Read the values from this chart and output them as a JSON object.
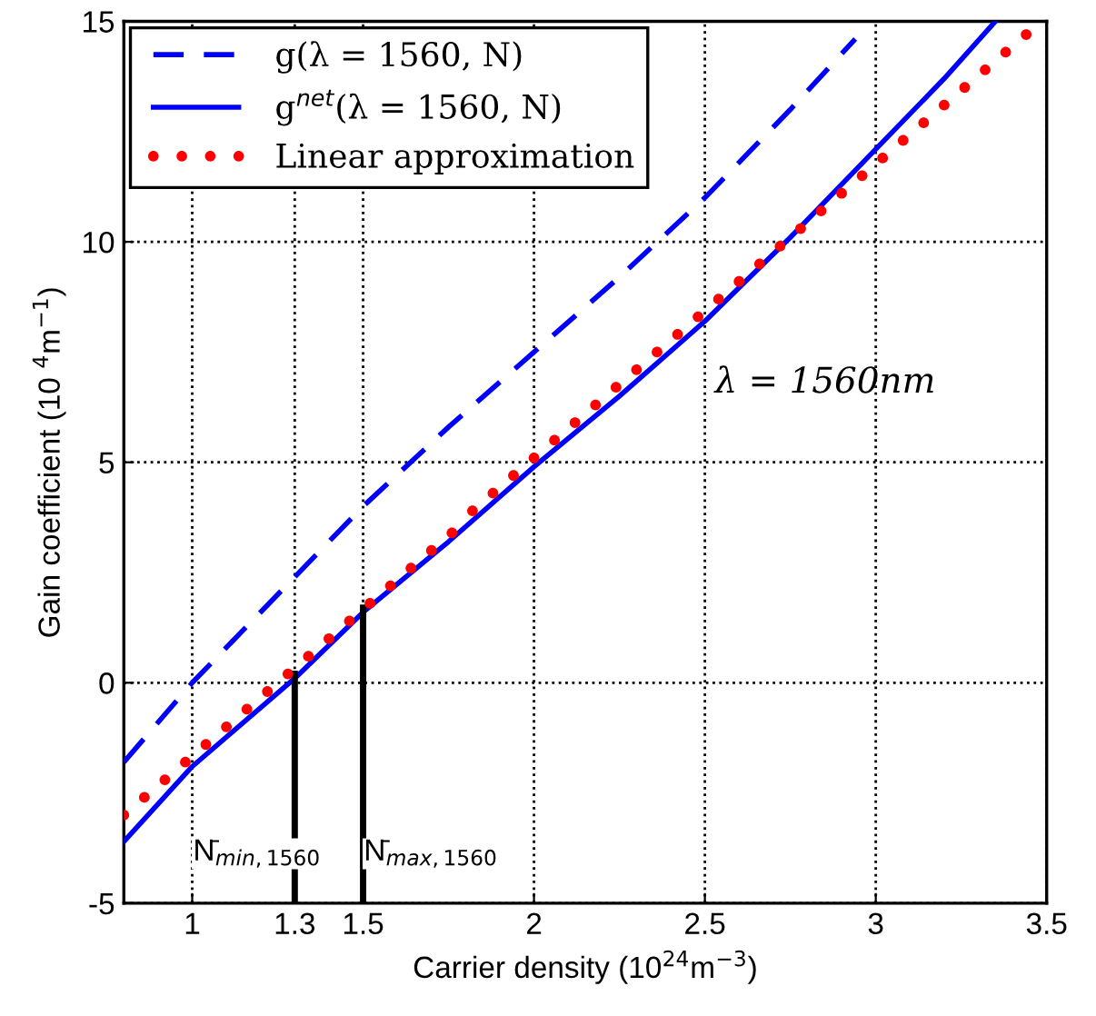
{
  "chart_data": {
    "type": "line",
    "xlabel": "Carrier density (10$^{24}$m$^{−3}$)",
    "ylabel": "Gain coefficient (10 $^{4}$m$^{−1}$)",
    "xlim": [
      0.8,
      3.5
    ],
    "xticks": [
      1,
      1.3,
      1.5,
      2,
      2.5,
      3,
      3.5
    ],
    "ylim": [
      -5,
      15
    ],
    "yticks": [
      -5,
      0,
      5,
      10,
      15
    ],
    "grid": true,
    "legend": "top left",
    "series": [
      {
        "name": "g(λ = 1560, N)",
        "color": "#0000ff",
        "type": "line",
        "line_style": "dashed",
        "x": [
          0.8,
          1.0,
          1.25,
          1.5,
          1.75,
          2.0,
          2.25,
          2.5,
          2.75,
          2.94
        ],
        "values": [
          -1.8,
          0.0,
          2.0,
          4.0,
          5.8,
          7.5,
          9.2,
          11.0,
          13.0,
          14.6
        ]
      },
      {
        "name": "g$^{net}$(λ = 1560, N)",
        "color": "#0000ff",
        "type": "line",
        "line_style": "solid",
        "x": [
          0.8,
          1.0,
          1.3,
          1.5,
          1.75,
          2.0,
          2.25,
          2.5,
          2.75,
          3.0,
          3.2,
          3.35
        ],
        "values": [
          -3.6,
          -1.9,
          0.1,
          1.6,
          3.2,
          4.9,
          6.5,
          8.2,
          10.1,
          12.1,
          13.7,
          15.0
        ]
      },
      {
        "name": "Linear approximation",
        "color": "#ff0000",
        "type": "scatter",
        "marker": "circle",
        "x": [
          0.8,
          0.86,
          0.92,
          0.98,
          1.04,
          1.1,
          1.16,
          1.22,
          1.28,
          1.34,
          1.4,
          1.46,
          1.52,
          1.58,
          1.64,
          1.7,
          1.76,
          1.82,
          1.88,
          1.94,
          2.0,
          2.06,
          2.12,
          2.18,
          2.24,
          2.3,
          2.36,
          2.42,
          2.48,
          2.54,
          2.6,
          2.66,
          2.72,
          2.78,
          2.84,
          2.9,
          2.96,
          3.02,
          3.08,
          3.14,
          3.2,
          3.26,
          3.32,
          3.38,
          3.44
        ],
        "values": [
          -3.0,
          -2.6,
          -2.2,
          -1.8,
          -1.4,
          -1.0,
          -0.6,
          -0.2,
          0.2,
          0.6,
          1.0,
          1.4,
          1.8,
          2.2,
          2.6,
          3.0,
          3.4,
          3.9,
          4.3,
          4.7,
          5.1,
          5.5,
          5.9,
          6.3,
          6.7,
          7.1,
          7.5,
          7.9,
          8.3,
          8.7,
          9.1,
          9.5,
          9.9,
          10.3,
          10.7,
          11.1,
          11.5,
          11.9,
          12.3,
          12.7,
          13.1,
          13.5,
          13.9,
          14.3,
          14.7
        ]
      },
      {
        "color": "#000000",
        "line_style": "solid",
        "x": [
          1.3,
          1.3
        ],
        "values": [
          -5,
          0.2
        ]
      },
      {
        "color": "#000000",
        "line_style": "solid",
        "x": [
          1.5,
          1.5
        ],
        "values": [
          -5,
          1.7
        ]
      }
    ],
    "annotations": [
      "λ = 1560nm",
      "N̄$_{min,1560}$",
      "N̄$_{max,1560}$"
    ]
  }
}
